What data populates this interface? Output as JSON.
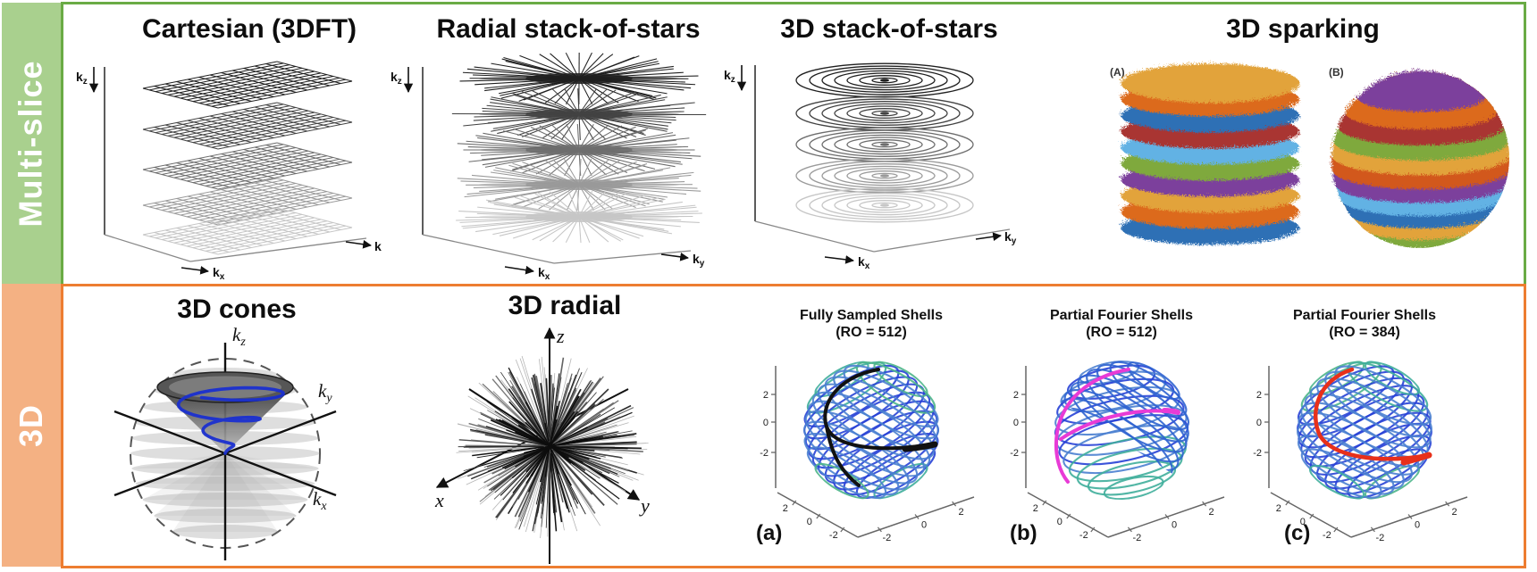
{
  "rows": [
    {
      "label": "Multi-slice",
      "band_fill": "#a9d08e",
      "border_color": "#6aab45",
      "panels": [
        {
          "title": "Cartesian (3DFT)",
          "axis_vertical_base": "k",
          "axis_vertical_sub": "z",
          "axis_bottom_base": "k",
          "axis_bottom_sub": "x",
          "axis_right_base": "k",
          "axis_right_sub": ""
        },
        {
          "title": "Radial stack-of-stars",
          "axis_vertical_base": "k",
          "axis_vertical_sub": "z",
          "axis_bottom_base": "k",
          "axis_bottom_sub": "x",
          "axis_right_base": "k",
          "axis_right_sub": "y"
        },
        {
          "title": "3D stack-of-stars",
          "axis_vertical_base": "k",
          "axis_vertical_sub": "z",
          "axis_bottom_base": "k",
          "axis_bottom_sub": "x",
          "axis_right_base": "k",
          "axis_right_sub": "y"
        },
        {
          "title": "3D sparking",
          "label_a": "(A)",
          "label_b": "(B)",
          "cylinder_band_colors": [
            "#e2a33b",
            "#dc6b1f",
            "#2f6fb5",
            "#a93430",
            "#62b2e4",
            "#7fa93c",
            "#7c3f9c",
            "#e2a33b",
            "#dc6b1f",
            "#2f6fb5"
          ],
          "sphere_band_colors": [
            "#7c3f9c",
            "#dc6b1f",
            "#a93430",
            "#7fa93c",
            "#e2a33b",
            "#d2581f",
            "#7c3f9c",
            "#62b2e4",
            "#2f6fb5",
            "#e2a33b",
            "#7fa93c"
          ]
        }
      ]
    },
    {
      "label": "3D",
      "band_fill": "#f4b183",
      "border_color": "#ed7d31",
      "panels": [
        {
          "title": "3D cones",
          "axis_top_base": "k",
          "axis_top_sub": "z",
          "axis_right_base": "k",
          "axis_right_sub": "y",
          "axis_bottom_base": "k",
          "axis_bottom_sub": "x",
          "cone_spiral_color": "#1a2fd0"
        },
        {
          "title": "3D radial",
          "axis_up": "z",
          "axis_left": "x",
          "axis_right": "y"
        },
        {
          "title_line1": "Fully Sampled Shells",
          "title_line2": "(RO = 512)",
          "corner_label": "(a)",
          "highlight_color": "#111111",
          "ticks_vertical": [
            "2",
            "0",
            "-2"
          ],
          "ticks_bottom_left": [
            "2",
            "0",
            "-2"
          ],
          "ticks_bottom_right": [
            "-2",
            "0",
            "2"
          ]
        },
        {
          "title_line1": "Partial Fourier Shells",
          "title_line2": "(RO = 512)",
          "corner_label": "(b)",
          "highlight_color": "#e83bd6",
          "ticks_vertical": [
            "2",
            "0",
            "-2"
          ],
          "ticks_bottom_left": [
            "2",
            "0",
            "-2"
          ],
          "ticks_bottom_right": [
            "-2",
            "0",
            "2"
          ]
        },
        {
          "title_line1": "Partial Fourier Shells",
          "title_line2": "(RO = 384)",
          "corner_label": "(c)",
          "highlight_color": "#e8301a",
          "ticks_vertical": [
            "2",
            "0",
            "-2"
          ],
          "ticks_bottom_left": [
            "2",
            "0",
            "-2"
          ],
          "ticks_bottom_right": [
            "-2",
            "0",
            "2"
          ]
        }
      ]
    }
  ],
  "slice_shades": [
    "#1f1f1f",
    "#424242",
    "#6d6d6d",
    "#9a9a9a",
    "#c6c6c6"
  ],
  "shell_palette": {
    "blue": "#2741d6",
    "blue2": "#2f63d0",
    "steel": "#4a7fd0",
    "teal": "#3fae9b",
    "green": "#4db58a"
  }
}
